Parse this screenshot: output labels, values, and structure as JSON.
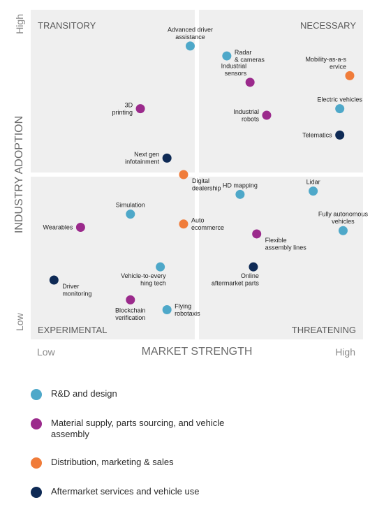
{
  "chart_data": {
    "type": "scatter",
    "xlabel": "MARKET STRENGTH",
    "ylabel": "INDUSTRY ADOPTION",
    "x_tick_low": "Low",
    "x_tick_high": "High",
    "y_tick_low": "Low",
    "y_tick_high": "High",
    "quadrants": {
      "top_left": "TRANSITORY",
      "top_right": "NECESSARY",
      "bottom_left": "EXPERIMENTAL",
      "bottom_right": "THREATENING"
    },
    "xlim": [
      0,
      10
    ],
    "ylim": [
      0,
      10
    ],
    "series": [
      {
        "name": "R&D and design",
        "color": "#4ea8c9",
        "points": [
          {
            "label": "Advanced driver\nassistance",
            "x": 4.8,
            "y": 8.9,
            "anchor": "above"
          },
          {
            "label": "Radar\n& cameras",
            "x": 5.9,
            "y": 8.6,
            "anchor": "right"
          },
          {
            "label": "Electric vehicles",
            "x": 9.3,
            "y": 7.0,
            "anchor": "above"
          },
          {
            "label": "Lidar",
            "x": 8.5,
            "y": 4.5,
            "anchor": "above"
          },
          {
            "label": "HD mapping",
            "x": 6.3,
            "y": 4.4,
            "anchor": "above"
          },
          {
            "label": "Fully autonomous\nvehicles",
            "x": 9.4,
            "y": 3.3,
            "anchor": "above"
          },
          {
            "label": "Simulation",
            "x": 3.0,
            "y": 3.8,
            "anchor": "above"
          },
          {
            "label": "Vehicle-to-every\nhing tech",
            "x": 3.9,
            "y": 2.2,
            "anchor": "below-left"
          },
          {
            "label": "Flying\nrobotaxis",
            "x": 4.1,
            "y": 0.9,
            "anchor": "right"
          }
        ]
      },
      {
        "name": "Material supply, parts sourcing, and vehicle assembly",
        "color": "#9b2a8c",
        "points": [
          {
            "label": "Industrial\nsensors",
            "x": 6.6,
            "y": 7.8,
            "anchor": "above-left"
          },
          {
            "label": "Industrial\nrobots",
            "x": 7.1,
            "y": 6.8,
            "anchor": "left"
          },
          {
            "label": "3D\nprinting",
            "x": 3.3,
            "y": 7.0,
            "anchor": "left"
          },
          {
            "label": "Wearables",
            "x": 1.5,
            "y": 3.4,
            "anchor": "left"
          },
          {
            "label": "Flexible\nassembly lines",
            "x": 6.8,
            "y": 3.2,
            "anchor": "below-right"
          },
          {
            "label": "Blockchain\nverification",
            "x": 3.0,
            "y": 1.2,
            "anchor": "below"
          }
        ]
      },
      {
        "name": "Distribution, marketing & sales",
        "color": "#f07c3a",
        "points": [
          {
            "label": "Mobility-as-a-s\nervice",
            "x": 9.6,
            "y": 8.0,
            "anchor": "above-left"
          },
          {
            "label": "Digital\ndealership",
            "x": 4.6,
            "y": 5.0,
            "anchor": "below-right"
          },
          {
            "label": "Auto\necommerce",
            "x": 4.6,
            "y": 3.5,
            "anchor": "right"
          }
        ]
      },
      {
        "name": "Aftermarket services and vehicle use",
        "color": "#0e2a55",
        "points": [
          {
            "label": "Next gen\ninfotainment",
            "x": 4.1,
            "y": 5.5,
            "anchor": "left"
          },
          {
            "label": "Telematics",
            "x": 9.3,
            "y": 6.2,
            "anchor": "left"
          },
          {
            "label": "Online\naftermarket parts",
            "x": 6.7,
            "y": 2.2,
            "anchor": "below-left"
          },
          {
            "label": "Driver\nmonitoring",
            "x": 0.7,
            "y": 1.8,
            "anchor": "below-right"
          }
        ]
      }
    ]
  },
  "legend": [
    {
      "label": "R&D and design",
      "color": "#4ea8c9"
    },
    {
      "label": "Material supply, parts sourcing, and vehicle assembly",
      "color": "#9b2a8c"
    },
    {
      "label": "Distribution, marketing & sales",
      "color": "#f07c3a"
    },
    {
      "label": "Aftermarket services and vehicle use",
      "color": "#0e2a55"
    }
  ]
}
